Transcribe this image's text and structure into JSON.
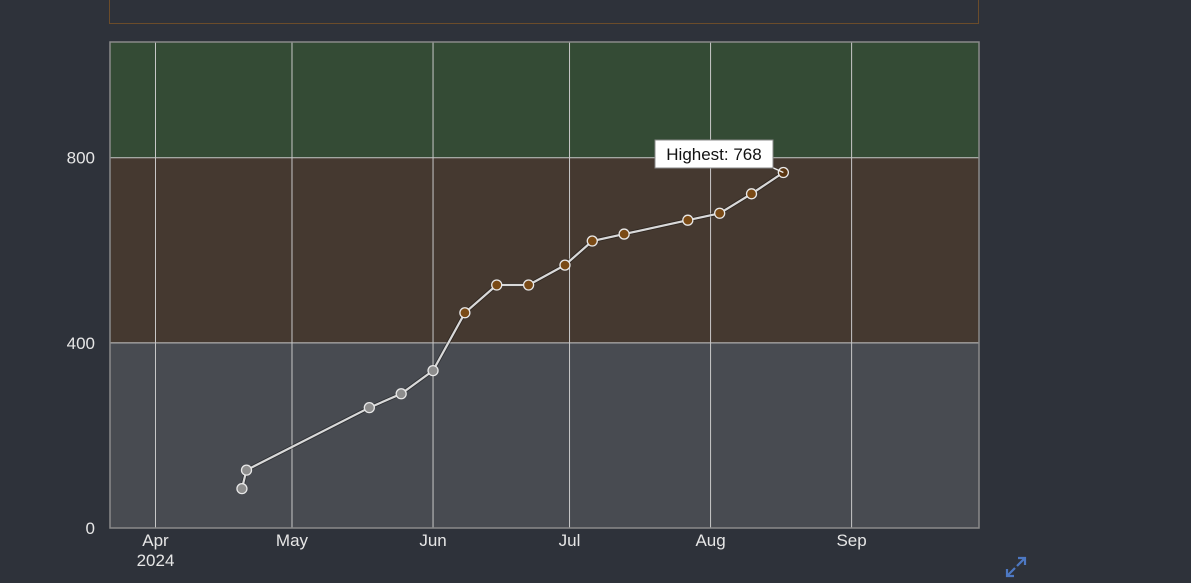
{
  "chart_data": {
    "type": "line",
    "x_type": "date",
    "xlim": [
      "2024-03-22",
      "2024-09-29"
    ],
    "ylim": [
      0,
      1050
    ],
    "y_ticks": [
      {
        "value": 0,
        "label": "0"
      },
      {
        "value": 400,
        "label": "400"
      },
      {
        "value": 800,
        "label": "800"
      }
    ],
    "x_ticks": [
      {
        "date": "2024-04-01",
        "label": "Apr",
        "sublabel": "2024"
      },
      {
        "date": "2024-05-01",
        "label": "May",
        "sublabel": ""
      },
      {
        "date": "2024-06-01",
        "label": "Jun",
        "sublabel": ""
      },
      {
        "date": "2024-07-01",
        "label": "Jul",
        "sublabel": ""
      },
      {
        "date": "2024-08-01",
        "label": "Aug",
        "sublabel": ""
      },
      {
        "date": "2024-09-01",
        "label": "Sep",
        "sublabel": ""
      }
    ],
    "bands": [
      {
        "from": 0,
        "to": 400,
        "color": "#484b51"
      },
      {
        "from": 400,
        "to": 800,
        "color": "#453930"
      },
      {
        "from": 800,
        "to": 1050,
        "color": "#344b35"
      }
    ],
    "grid": true,
    "series": [
      {
        "points": [
          {
            "x": "2024-04-20",
            "y": 85
          },
          {
            "x": "2024-04-21",
            "y": 125
          },
          {
            "x": "2024-05-18",
            "y": 260
          },
          {
            "x": "2024-05-25",
            "y": 290
          },
          {
            "x": "2024-06-01",
            "y": 340
          },
          {
            "x": "2024-06-08",
            "y": 465
          },
          {
            "x": "2024-06-15",
            "y": 525
          },
          {
            "x": "2024-06-22",
            "y": 525
          },
          {
            "x": "2024-06-30",
            "y": 568
          },
          {
            "x": "2024-07-06",
            "y": 620
          },
          {
            "x": "2024-07-13",
            "y": 635
          },
          {
            "x": "2024-07-27",
            "y": 665
          },
          {
            "x": "2024-08-03",
            "y": 680
          },
          {
            "x": "2024-08-10",
            "y": 722
          },
          {
            "x": "2024-08-17",
            "y": 768
          }
        ]
      }
    ],
    "annotation": {
      "text": "Highest: 768",
      "x": "2024-08-17",
      "y": 768
    },
    "colors": {
      "grid": "#c8c8c8",
      "axis": "#8a8a8a",
      "line": "#d9d9d9",
      "point_gray": "#8d8d8d",
      "point_orange": "#7a4a15",
      "point_highest": "#5a3510"
    }
  },
  "icons": {
    "expand": "expand-arrows-icon"
  }
}
